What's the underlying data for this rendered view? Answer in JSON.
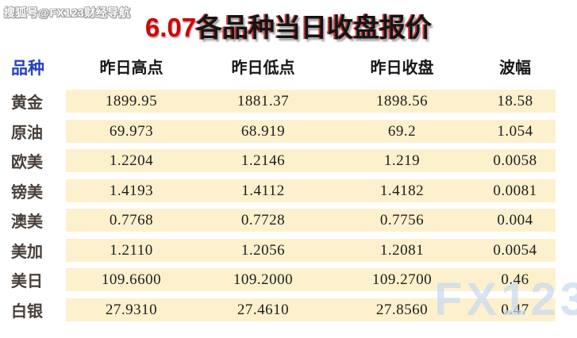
{
  "watermarks": {
    "top": "搜狐号@FX123财经导航",
    "bottom": "FX123"
  },
  "title": {
    "date": "6.07",
    "text": "各品种当日收盘报价"
  },
  "table": {
    "headers": [
      "品种",
      "昨日高点",
      "昨日低点",
      "昨日收盘",
      "波幅"
    ],
    "rows": [
      {
        "name": "黄金",
        "high": "1899.95",
        "low": "1881.37",
        "close": "1898.56",
        "range": "18.58"
      },
      {
        "name": "原油",
        "high": "69.973",
        "low": "68.919",
        "close": "69.2",
        "range": "1.054"
      },
      {
        "name": "欧美",
        "high": "1.2204",
        "low": "1.2146",
        "close": "1.219",
        "range": "0.0058"
      },
      {
        "name": "镑美",
        "high": "1.4193",
        "low": "1.4112",
        "close": "1.4182",
        "range": "0.0081"
      },
      {
        "name": "澳美",
        "high": "0.7768",
        "low": "0.7728",
        "close": "0.7756",
        "range": "0.004"
      },
      {
        "name": "美加",
        "high": "1.2110",
        "low": "1.2056",
        "close": "1.2081",
        "range": "0.0054"
      },
      {
        "name": "美日",
        "high": "109.6600",
        "low": "109.2000",
        "close": "109.2700",
        "range": "0.46"
      },
      {
        "name": "白银",
        "high": "27.9310",
        "low": "27.4610",
        "close": "27.8560",
        "range": "0.47"
      }
    ]
  },
  "colors": {
    "title_red": "#cf0404",
    "header_blue": "#2440c4",
    "row_band_cream": "#fdf1cd",
    "label_brown": "#4a403a",
    "number_dark": "#1d1d1d",
    "watermark_blue": "#c6d9ef"
  }
}
